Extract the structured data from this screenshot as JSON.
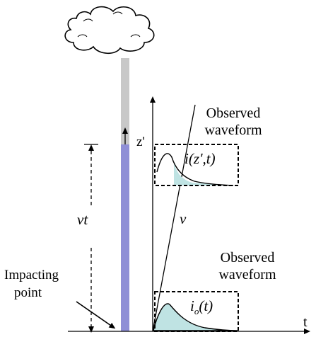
{
  "labels": {
    "observed_top_line1": "Observed",
    "observed_top_line2": "waveform",
    "observed_bottom_line1": "Observed",
    "observed_bottom_line2": "waveform",
    "z_prime": "z'",
    "current_at_height": "i(z',t)",
    "vt": "vt",
    "v": "v",
    "impacting_line1": "Impacting",
    "impacting_line2": "point",
    "channel_base_current_main": "i",
    "channel_base_current_sub": "o",
    "channel_base_current_arg": "(t)",
    "t_axis": "t"
  },
  "colors": {
    "channel_lit": "#8f8fd6",
    "channel_unlit": "#c8c8c8",
    "waveform_fill": "#bfe3e3",
    "line": "#000000"
  }
}
